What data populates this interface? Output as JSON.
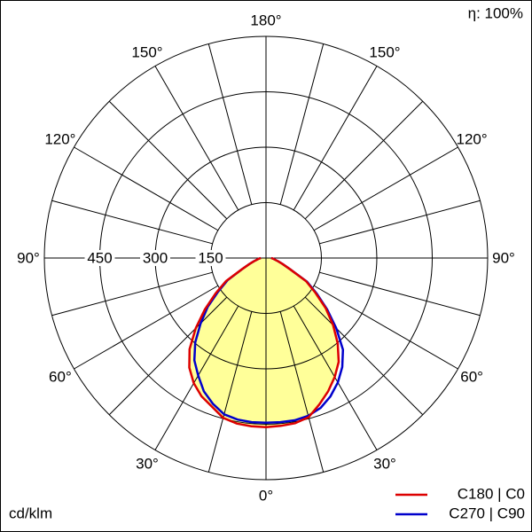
{
  "chart_data": {
    "type": "polar",
    "efficiency_label": "η: 100%",
    "unit_label": "cd/klm",
    "angles": [
      -90,
      -85,
      -80,
      -75,
      -70,
      -65,
      -60,
      -55,
      -50,
      -45,
      -40,
      -35,
      -30,
      -25,
      -20,
      -15,
      -10,
      -5,
      0,
      5,
      10,
      15,
      20,
      25,
      30,
      35,
      40,
      45,
      50,
      55,
      60,
      65,
      70,
      75,
      80,
      85,
      90
    ],
    "series": [
      {
        "name": "C270 | C90",
        "color": "#0000cc",
        "values": [
          14,
          19,
          24,
          34,
          48,
          72,
          120,
          158,
          206,
          250,
          298,
          338,
          367,
          398,
          420,
          438,
          444,
          446,
          446,
          446,
          446,
          442,
          432,
          413,
          389,
          360,
          324,
          269,
          216,
          168,
          128,
          72,
          48,
          34,
          24,
          19,
          14
        ]
      },
      {
        "name": "C180 | C0",
        "color": "#dd0000",
        "values": [
          14,
          19,
          24,
          34,
          48,
          72,
          125,
          166,
          216,
          269,
          322,
          362,
          391,
          413,
          428,
          448,
          455,
          457,
          458,
          456,
          454,
          446,
          422,
          398,
          372,
          343,
          302,
          257,
          211,
          163,
          125,
          72,
          48,
          34,
          24,
          19,
          14
        ]
      }
    ],
    "fill_color": "#ffff99",
    "rlim": [
      0,
      600
    ],
    "rticks": [
      150,
      300,
      450
    ],
    "angle_ticks": [
      {
        "value": -150,
        "label": "150°"
      },
      {
        "value": -120,
        "label": "120°"
      },
      {
        "value": -90,
        "label": "90°"
      },
      {
        "value": -60,
        "label": "60°"
      },
      {
        "value": -30,
        "label": "30°"
      },
      {
        "value": 0,
        "label": "0°"
      },
      {
        "value": 30,
        "label": "30°"
      },
      {
        "value": 60,
        "label": "60°"
      },
      {
        "value": 90,
        "label": "90°"
      },
      {
        "value": 120,
        "label": "120°"
      },
      {
        "value": 150,
        "label": "150°"
      },
      {
        "value": 180,
        "label": "180°"
      }
    ],
    "legend": "bottom-right"
  }
}
